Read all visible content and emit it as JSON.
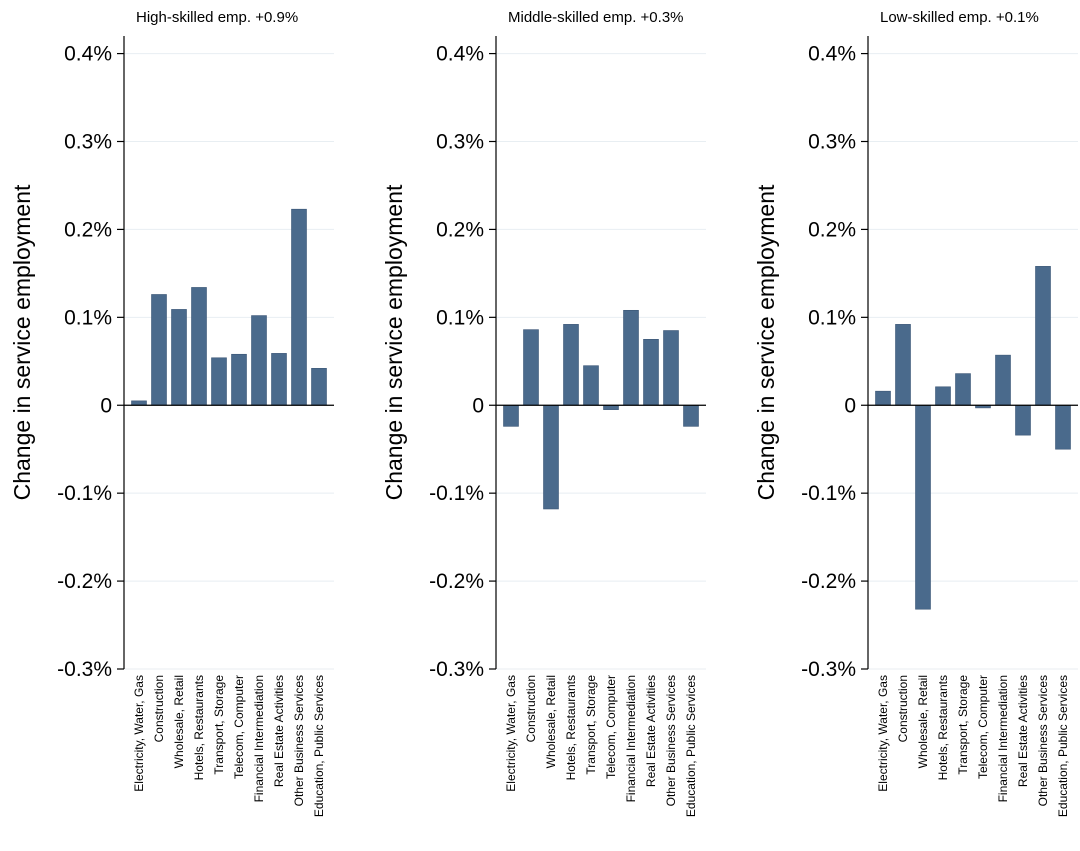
{
  "colors": {
    "bar": "#4a6a8c",
    "grid": "#e8eef2",
    "axis": "#000000"
  },
  "chart_data": [
    {
      "type": "bar",
      "title": "High-skilled emp. +0.9%",
      "ylabel": "Change in service employment",
      "xlabel": "",
      "ylim": [
        -0.3,
        0.42
      ],
      "yticks": [
        -0.3,
        -0.2,
        -0.1,
        0,
        0.1,
        0.2,
        0.3,
        0.4
      ],
      "ytick_labels": [
        "-0.3%",
        "-0.2%",
        "-0.1%",
        "0",
        "0.1%",
        "0.2%",
        "0.3%",
        "0.4%"
      ],
      "grid": true,
      "categories": [
        "Electricity, Water, Gas",
        "Construction",
        "Wholesale, Retail",
        "Hotels, Restaurants",
        "Transport, Storage",
        "Telecom, Computer",
        "Financial Intermediation",
        "Real Estate Activities",
        "Other Business Services",
        "Education, Public Services"
      ],
      "values": [
        0.005,
        0.126,
        0.109,
        0.134,
        0.054,
        0.058,
        0.102,
        0.059,
        0.223,
        0.042
      ]
    },
    {
      "type": "bar",
      "title": "Middle-skilled emp. +0.3%",
      "ylabel": "Change in service employment",
      "xlabel": "",
      "ylim": [
        -0.3,
        0.42
      ],
      "yticks": [
        -0.3,
        -0.2,
        -0.1,
        0,
        0.1,
        0.2,
        0.3,
        0.4
      ],
      "ytick_labels": [
        "-0.3%",
        "-0.2%",
        "-0.1%",
        "0",
        "0.1%",
        "0.2%",
        "0.3%",
        "0.4%"
      ],
      "grid": true,
      "categories": [
        "Electricity, Water, Gas",
        "Construction",
        "Wholesale, Retail",
        "Hotels, Restaurants",
        "Transport, Storage",
        "Telecom, Computer",
        "Financial Intermediation",
        "Real Estate Activities",
        "Other Business Services",
        "Education, Public Services"
      ],
      "values": [
        -0.024,
        0.086,
        -0.118,
        0.092,
        0.045,
        -0.005,
        0.108,
        0.075,
        0.085,
        -0.024
      ]
    },
    {
      "type": "bar",
      "title": "Low-skilled emp. +0.1%",
      "ylabel": "Change in service employment",
      "xlabel": "",
      "ylim": [
        -0.3,
        0.42
      ],
      "yticks": [
        -0.3,
        -0.2,
        -0.1,
        0,
        0.1,
        0.2,
        0.3,
        0.4
      ],
      "ytick_labels": [
        "-0.3%",
        "-0.2%",
        "-0.1%",
        "0",
        "0.1%",
        "0.2%",
        "0.3%",
        "0.4%"
      ],
      "grid": true,
      "categories": [
        "Electricity, Water, Gas",
        "Construction",
        "Wholesale, Retail",
        "Hotels, Restaurants",
        "Transport, Storage",
        "Telecom, Computer",
        "Financial Intermediation",
        "Real Estate Activities",
        "Other Business Services",
        "Education, Public Services"
      ],
      "values": [
        0.016,
        0.092,
        -0.232,
        0.021,
        0.036,
        -0.003,
        0.057,
        -0.034,
        0.158,
        -0.05
      ]
    }
  ]
}
